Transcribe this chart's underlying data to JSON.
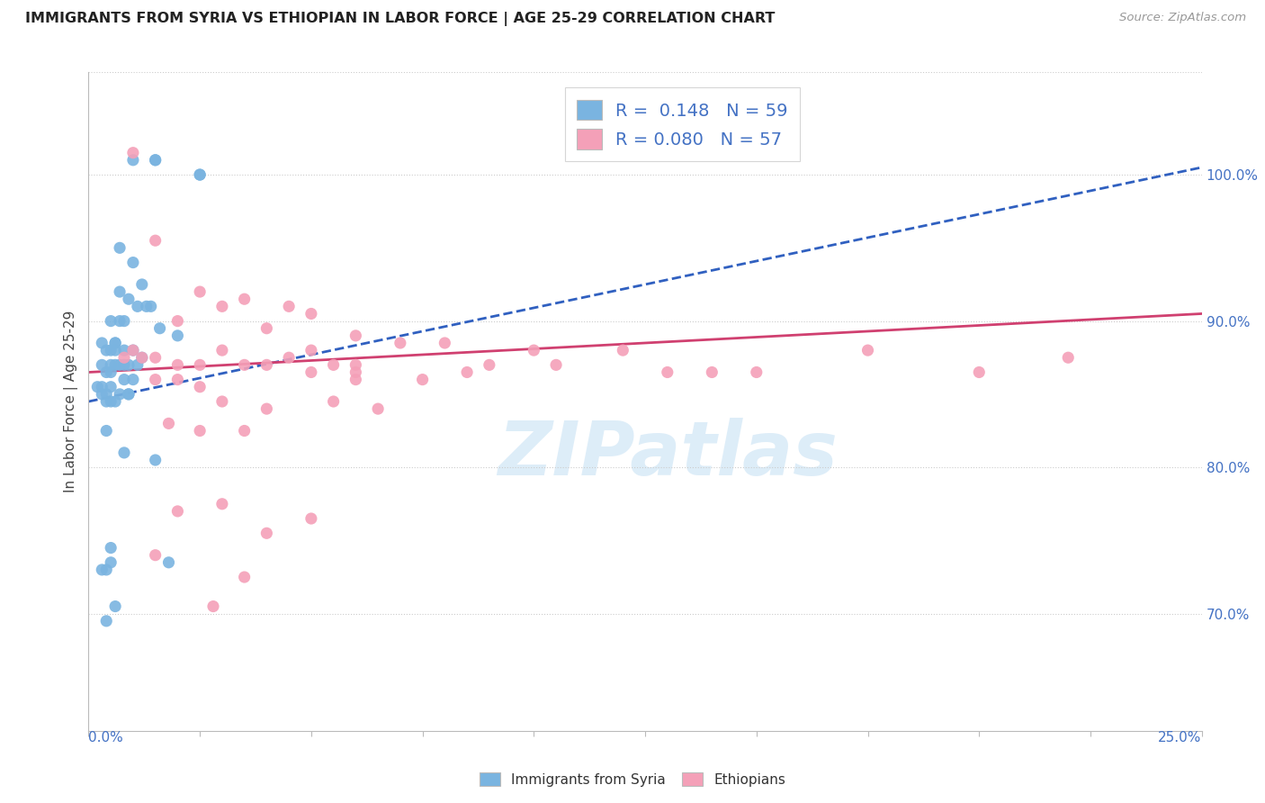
{
  "title": "IMMIGRANTS FROM SYRIA VS ETHIOPIAN IN LABOR FORCE | AGE 25-29 CORRELATION CHART",
  "source": "Source: ZipAtlas.com",
  "ylabel": "In Labor Force | Age 25-29",
  "x_range": [
    0.0,
    25.0
  ],
  "y_range": [
    62.0,
    107.0
  ],
  "legend_R_syria": "0.148",
  "legend_N_syria": "59",
  "legend_R_ethiopian": "0.080",
  "legend_N_ethiopian": "57",
  "syria_color": "#7ab4e0",
  "ethiopian_color": "#f4a0b8",
  "syria_line_color": "#3060c0",
  "ethiopian_line_color": "#d04070",
  "watermark_text": "ZIPatlas",
  "syria_x": [
    0.2,
    0.3,
    0.3,
    0.3,
    0.3,
    0.4,
    0.4,
    0.4,
    0.4,
    0.4,
    0.5,
    0.5,
    0.5,
    0.5,
    0.5,
    0.5,
    0.6,
    0.6,
    0.6,
    0.6,
    0.6,
    0.7,
    0.7,
    0.7,
    0.7,
    0.8,
    0.8,
    0.8,
    0.8,
    0.9,
    0.9,
    0.9,
    1.0,
    1.0,
    1.0,
    1.1,
    1.1,
    1.2,
    1.2,
    1.3,
    1.4,
    1.5,
    1.5,
    1.6,
    1.8,
    2.0,
    2.5,
    0.3,
    0.4,
    0.5,
    0.6,
    0.7,
    0.8,
    0.9,
    1.0,
    1.5,
    2.5,
    0.4,
    0.5
  ],
  "syria_y": [
    85.5,
    85.5,
    87.0,
    88.5,
    85.0,
    88.0,
    84.5,
    82.5,
    85.0,
    86.5,
    90.0,
    87.0,
    88.0,
    84.5,
    85.5,
    86.5,
    88.5,
    87.0,
    84.5,
    88.0,
    88.5,
    90.0,
    95.0,
    87.0,
    85.0,
    90.0,
    88.0,
    86.0,
    87.0,
    91.5,
    87.0,
    85.0,
    94.0,
    88.0,
    86.0,
    91.0,
    87.0,
    92.5,
    87.5,
    91.0,
    91.0,
    101.0,
    80.5,
    89.5,
    73.5,
    89.0,
    100.0,
    73.0,
    73.0,
    73.5,
    70.5,
    92.0,
    81.0,
    85.0,
    101.0,
    101.0,
    100.0,
    69.5,
    74.5
  ],
  "ethiopian_x": [
    0.8,
    1.0,
    1.2,
    1.5,
    1.5,
    1.5,
    1.8,
    2.0,
    2.0,
    2.0,
    2.5,
    2.5,
    2.5,
    2.5,
    2.8,
    3.0,
    3.0,
    3.0,
    3.5,
    3.5,
    3.5,
    4.0,
    4.0,
    4.0,
    4.5,
    4.5,
    5.0,
    5.0,
    5.0,
    5.5,
    5.5,
    6.0,
    6.0,
    6.0,
    6.5,
    7.0,
    7.5,
    8.0,
    8.5,
    9.0,
    10.0,
    10.5,
    12.0,
    13.0,
    14.0,
    15.0,
    17.5,
    20.0,
    22.0,
    1.0,
    1.5,
    2.0,
    3.0,
    4.0,
    5.0,
    6.0,
    3.5
  ],
  "ethiopian_y": [
    87.5,
    88.0,
    87.5,
    95.5,
    87.5,
    86.0,
    83.0,
    87.0,
    86.0,
    77.0,
    92.0,
    87.0,
    85.5,
    82.5,
    70.5,
    88.0,
    84.5,
    77.5,
    91.5,
    87.0,
    82.5,
    89.5,
    87.0,
    75.5,
    91.0,
    87.5,
    90.5,
    86.5,
    76.5,
    87.0,
    84.5,
    89.0,
    87.0,
    86.5,
    84.0,
    88.5,
    86.0,
    88.5,
    86.5,
    87.0,
    88.0,
    87.0,
    88.0,
    86.5,
    86.5,
    86.5,
    88.0,
    86.5,
    87.5,
    101.5,
    74.0,
    90.0,
    91.0,
    84.0,
    88.0,
    86.0,
    72.5
  ],
  "syria_trend_x": [
    0.0,
    25.0
  ],
  "syria_trend_y": [
    84.5,
    100.5
  ],
  "ethiopian_trend_x": [
    0.0,
    25.0
  ],
  "ethiopian_trend_y": [
    86.5,
    90.5
  ],
  "y_ticks": [
    70.0,
    80.0,
    90.0,
    100.0
  ],
  "y_tick_labels": [
    "70.0%",
    "80.0%",
    "90.0%",
    "100.0%"
  ]
}
